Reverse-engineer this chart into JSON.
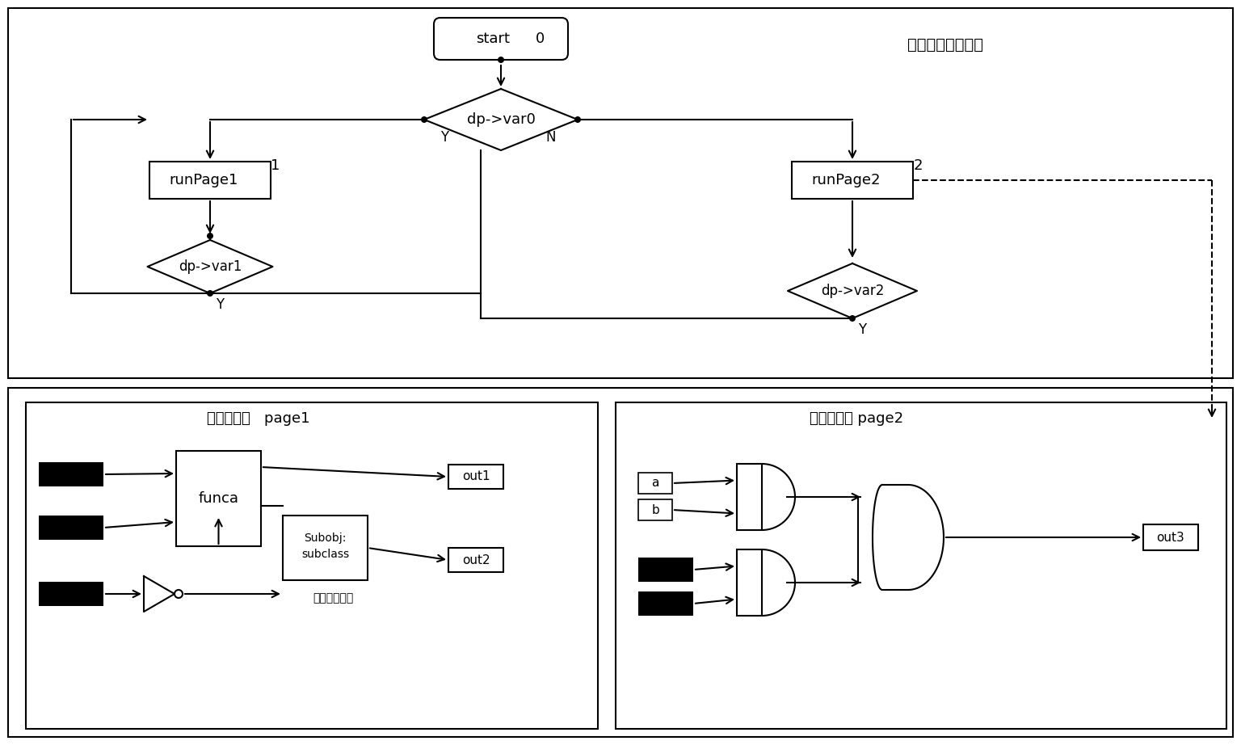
{
  "bg": "#ffffff",
  "label_top": "顺序执行控制页面",
  "label_page1": "执行步页面   page1",
  "label_page2": "执行步页面 page2",
  "label_sub": "功能图子页面"
}
